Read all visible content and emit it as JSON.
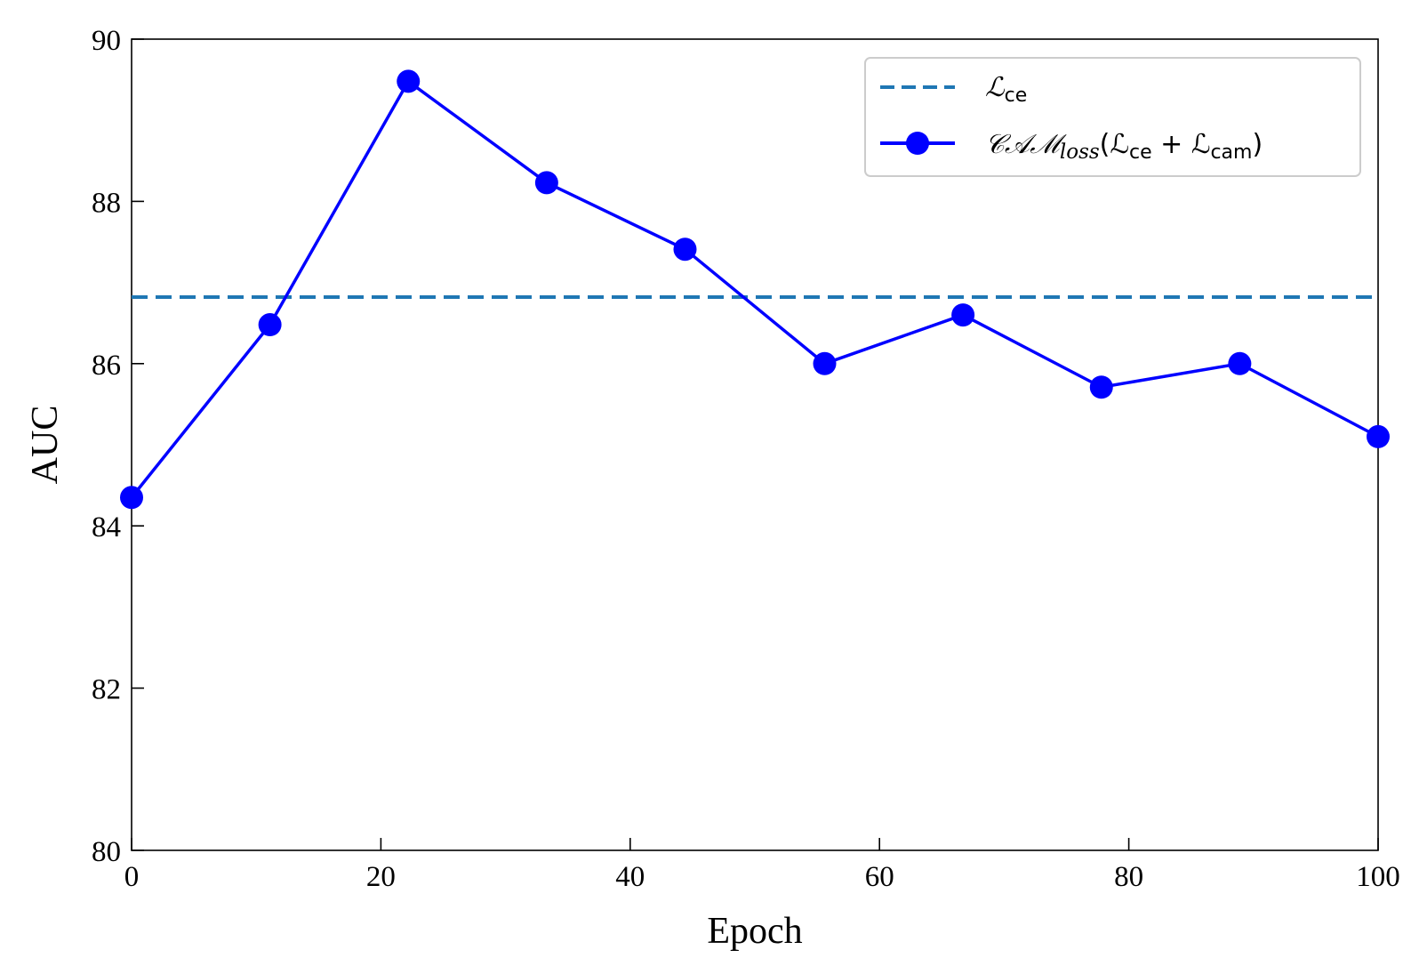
{
  "chart_data": {
    "type": "line",
    "xlabel": "Epoch",
    "ylabel": "AUC",
    "xlim": [
      0,
      100
    ],
    "ylim": [
      80,
      90
    ],
    "xticks": [
      0,
      20,
      40,
      60,
      80,
      100
    ],
    "yticks": [
      80,
      82,
      84,
      86,
      88,
      90
    ],
    "xtick_labels": [
      "0",
      "20",
      "40",
      "60",
      "80",
      "100"
    ],
    "ytick_labels": [
      "80",
      "82",
      "84",
      "86",
      "88",
      "90"
    ],
    "grid": false,
    "legend_position": "top-right",
    "series": [
      {
        "name": "ℒce",
        "style": "dashed",
        "color": "#1f77b4",
        "x": [
          0,
          100
        ],
        "y": [
          86.82,
          86.82
        ]
      },
      {
        "name": "𝒞𝒜ℳloss(ℒce + ℒcam)",
        "style": "solid-marker",
        "color": "#0000ff",
        "x": [
          0,
          11.1,
          22.2,
          33.3,
          44.4,
          55.6,
          66.7,
          77.8,
          88.9,
          100
        ],
        "y": [
          84.35,
          86.48,
          89.48,
          88.23,
          87.41,
          86.0,
          86.6,
          85.71,
          86.0,
          85.1
        ]
      }
    ]
  },
  "legend": {
    "ce_main": "ℒ",
    "ce_sub": "ce",
    "cam_prefix": "𝒞𝒜ℳ",
    "cam_loss": "loss",
    "cam_open": "(ℒ",
    "cam_sub1": "ce",
    "cam_plus": " + ℒ",
    "cam_sub2": "cam",
    "cam_close": ")"
  }
}
